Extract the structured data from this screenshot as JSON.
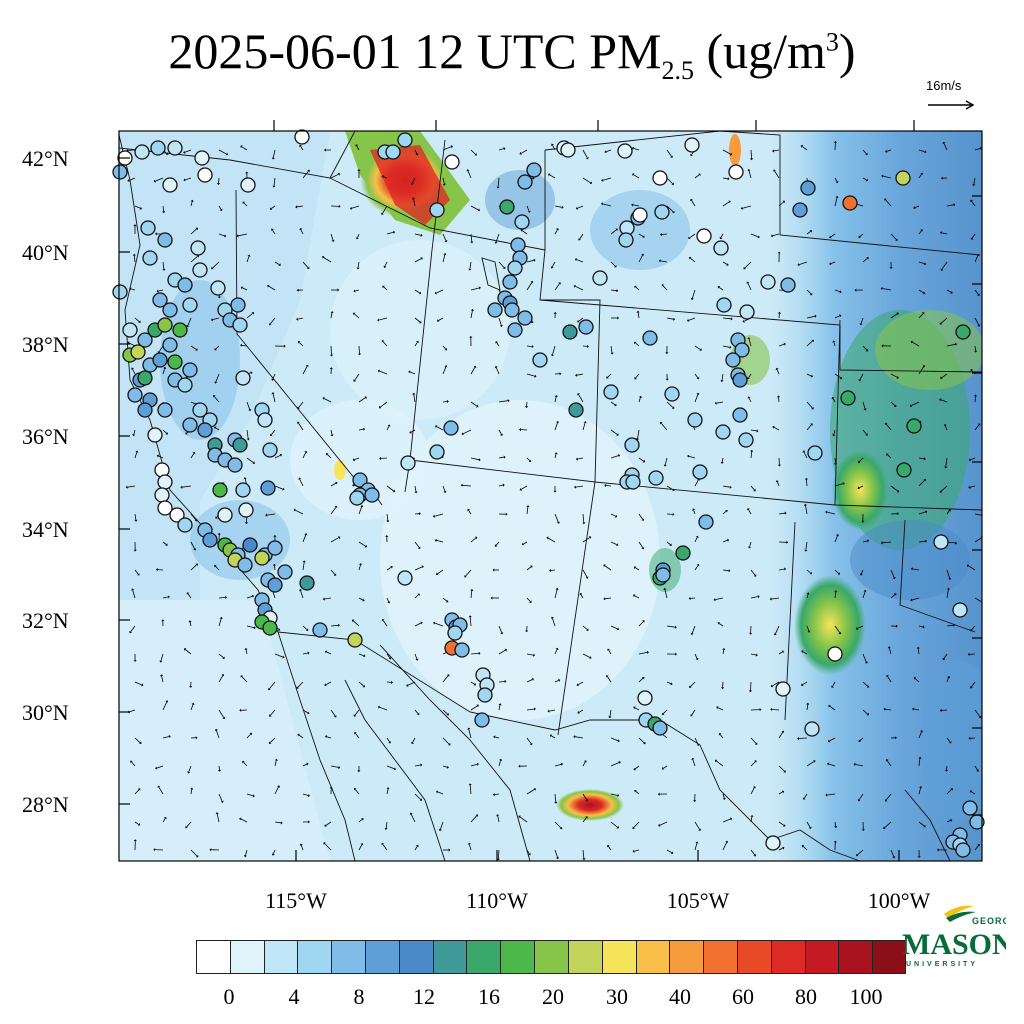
{
  "title": {
    "prefix": "2025-06-01 12 UTC PM",
    "sub": "2.5",
    "mid": " (ug/m",
    "sup": "3",
    "suffix": ")"
  },
  "wind_reference": {
    "label": "16m/s"
  },
  "axes": {
    "lat_labels": [
      "42°N",
      "40°N",
      "38°N",
      "36°N",
      "34°N",
      "32°N",
      "30°N",
      "28°N"
    ],
    "lon_labels": [
      "115°W",
      "110°W",
      "105°W",
      "100°W"
    ]
  },
  "colorbar": {
    "labels": [
      "0",
      "4",
      "8",
      "12",
      "16",
      "20",
      "30",
      "40",
      "60",
      "80",
      "100"
    ],
    "colors": [
      "#ffffff",
      "#dff3fb",
      "#bfe6f7",
      "#9fd6f2",
      "#7fbde8",
      "#5f9fd8",
      "#4a8ac8",
      "#3f9a9a",
      "#3aa86a",
      "#4cb84a",
      "#86c44a",
      "#c2d45a",
      "#f6e45a",
      "#f8c048",
      "#f69c3c",
      "#f27030",
      "#e84a28",
      "#dc2a24",
      "#c41a24",
      "#a8121e",
      "#8c0e18"
    ]
  },
  "logo": {
    "line1": "GEORGE",
    "line2": "MASON",
    "line3": "UNIVERSITY"
  }
}
